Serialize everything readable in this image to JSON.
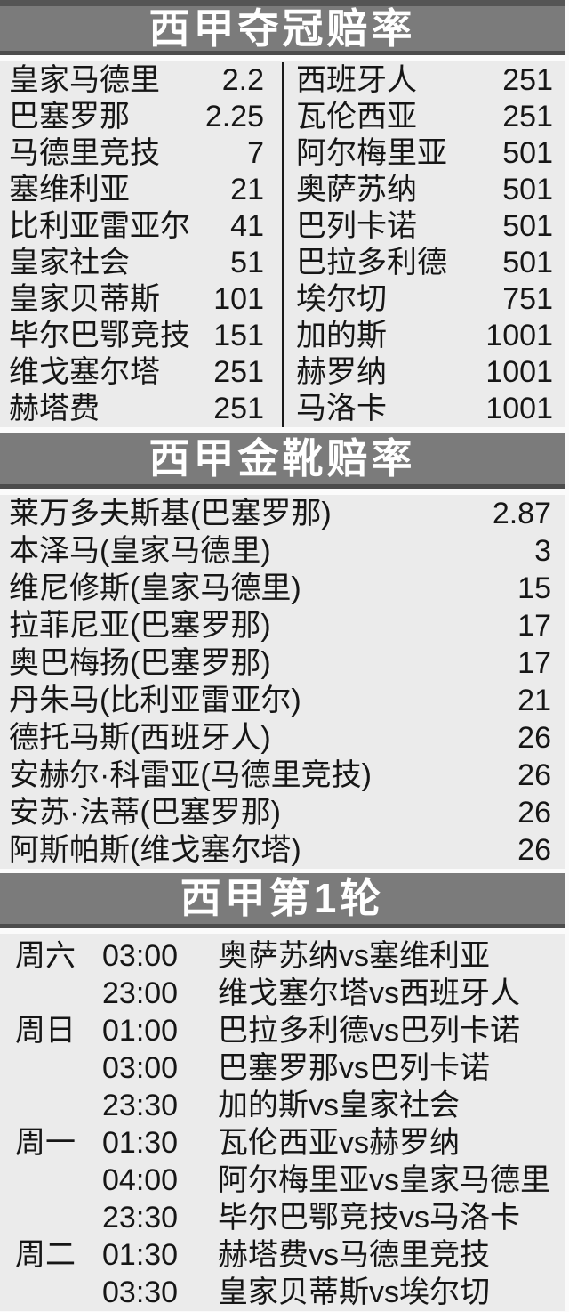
{
  "colors": {
    "band_bg": "#7b7b7b",
    "band_rule": "#4c4c4c",
    "panel_bg": "#ebebeb",
    "text": "#161616",
    "title_text": "#ffffff"
  },
  "championship": {
    "title": "西甲夺冠赔率",
    "left": [
      {
        "team": "皇家马德里",
        "odds": "2.2"
      },
      {
        "team": "巴塞罗那",
        "odds": "2.25"
      },
      {
        "team": "马德里竞技",
        "odds": "7"
      },
      {
        "team": "塞维利亚",
        "odds": "21"
      },
      {
        "team": "比利亚雷亚尔",
        "odds": "41"
      },
      {
        "team": "皇家社会",
        "odds": "51"
      },
      {
        "team": "皇家贝蒂斯",
        "odds": "101"
      },
      {
        "team": "毕尔巴鄂竞技",
        "odds": "151"
      },
      {
        "team": "维戈塞尔塔",
        "odds": "251"
      },
      {
        "team": "赫塔费",
        "odds": "251"
      }
    ],
    "right": [
      {
        "team": "西班牙人",
        "odds": "251"
      },
      {
        "team": "瓦伦西亚",
        "odds": "251"
      },
      {
        "team": "阿尔梅里亚",
        "odds": "501"
      },
      {
        "team": "奥萨苏纳",
        "odds": "501"
      },
      {
        "team": "巴列卡诺",
        "odds": "501"
      },
      {
        "team": "巴拉多利德",
        "odds": "501"
      },
      {
        "team": "埃尔切",
        "odds": "751"
      },
      {
        "team": "加的斯",
        "odds": "1001"
      },
      {
        "team": "赫罗纳",
        "odds": "1001"
      },
      {
        "team": "马洛卡",
        "odds": "1001"
      }
    ]
  },
  "golden_boot": {
    "title": "西甲金靴赔率",
    "rows": [
      {
        "player": "莱万多夫斯基(巴塞罗那)",
        "odds": "2.87"
      },
      {
        "player": "本泽马(皇家马德里)",
        "odds": "3"
      },
      {
        "player": "维尼修斯(皇家马德里)",
        "odds": "15"
      },
      {
        "player": "拉菲尼亚(巴塞罗那)",
        "odds": "17"
      },
      {
        "player": "奥巴梅扬(巴塞罗那)",
        "odds": "17"
      },
      {
        "player": "丹朱马(比利亚雷亚尔)",
        "odds": "21"
      },
      {
        "player": "德托马斯(西班牙人)",
        "odds": "26"
      },
      {
        "player": "安赫尔·科雷亚(马德里竞技)",
        "odds": "26"
      },
      {
        "player": "安苏·法蒂(巴塞罗那)",
        "odds": "26"
      },
      {
        "player": "阿斯帕斯(维戈塞尔塔)",
        "odds": "26"
      }
    ]
  },
  "round1": {
    "title": "西甲第1轮",
    "rows": [
      {
        "day": "周六",
        "time": "03:00",
        "match": "奥萨苏纳vs塞维利亚"
      },
      {
        "day": "",
        "time": "23:00",
        "match": "维戈塞尔塔vs西班牙人"
      },
      {
        "day": "周日",
        "time": "01:00",
        "match": "巴拉多利德vs巴列卡诺"
      },
      {
        "day": "",
        "time": "03:00",
        "match": "巴塞罗那vs巴列卡诺"
      },
      {
        "day": "",
        "time": "23:30",
        "match": "加的斯vs皇家社会"
      },
      {
        "day": "周一",
        "time": "01:30",
        "match": "瓦伦西亚vs赫罗纳"
      },
      {
        "day": "",
        "time": "04:00",
        "match": "阿尔梅里亚vs皇家马德里"
      },
      {
        "day": "",
        "time": "23:30",
        "match": "毕尔巴鄂竞技vs马洛卡"
      },
      {
        "day": "周二",
        "time": "01:30",
        "match": "赫塔费vs马德里竞技"
      },
      {
        "day": "",
        "time": "03:30",
        "match": "皇家贝蒂斯vs埃尔切"
      }
    ]
  }
}
